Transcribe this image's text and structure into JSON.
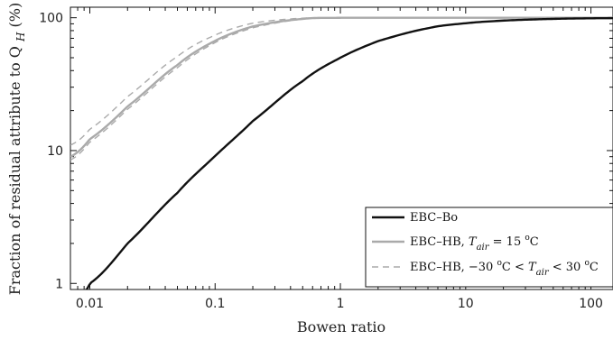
{
  "chart_data": {
    "type": "line",
    "xlabel": "Bowen ratio",
    "ylabel": "Fraction of residual attribute to Q",
    "ylabel_sub": "H",
    "ylabel_unit": " (%)",
    "x_scale": "log",
    "y_scale": "log",
    "xlim": [
      0.007,
      150
    ],
    "ylim": [
      0.9,
      120
    ],
    "x_ticks": [
      0.01,
      0.1,
      1,
      10,
      100
    ],
    "x_tick_labels": [
      "0.01",
      "0.1",
      "1",
      "10",
      "100"
    ],
    "y_ticks": [
      1,
      10,
      100
    ],
    "y_tick_labels": [
      "1",
      "10",
      "100"
    ],
    "grid": false,
    "legend_placement": "bottom-right",
    "series": [
      {
        "name": "EBC–Bo",
        "color": "#111111",
        "style": "solid",
        "x": [
          0.0085,
          0.01,
          0.02,
          0.05,
          0.1,
          0.2,
          0.5,
          1,
          2,
          5,
          10,
          20,
          50,
          100,
          150
        ],
        "y": [
          0.85,
          1.0,
          2.0,
          4.8,
          9.1,
          16.7,
          33.3,
          50,
          66.7,
          83.3,
          90.9,
          95.2,
          98.0,
          99.0,
          99.3
        ]
      },
      {
        "name": "EBC–HB,  T_air = 15 °C",
        "name_parts": [
          "EBC–HB,  ",
          "T",
          "air",
          " = 15 ",
          "o",
          "C"
        ],
        "color": "#aaaaaa",
        "style": "solid",
        "x": [
          0.007,
          0.01,
          0.02,
          0.05,
          0.1,
          0.2,
          0.5,
          1,
          2,
          5,
          10,
          100,
          150
        ],
        "y": [
          9,
          12.2,
          21.5,
          44,
          67,
          86,
          98,
          99.9,
          100,
          100,
          100,
          100,
          100
        ]
      },
      {
        "name": "EBC–HB, −30 °C < T_air < 30 °C (upper)",
        "color": "#aaaaaa",
        "style": "dashed",
        "x": [
          0.007,
          0.01,
          0.02,
          0.05,
          0.1,
          0.2,
          0.5,
          1,
          2,
          5,
          10,
          100,
          150
        ],
        "y": [
          11,
          14.5,
          25.5,
          51,
          74,
          91,
          99.2,
          100,
          100,
          100,
          100,
          100,
          100
        ]
      },
      {
        "name": "EBC–HB, −30 °C < T_air < 30 °C (lower)",
        "color": "#aaaaaa",
        "style": "dashed",
        "x": [
          0.007,
          0.01,
          0.02,
          0.05,
          0.1,
          0.2,
          0.5,
          1,
          2,
          5,
          10,
          100,
          150
        ],
        "y": [
          8.5,
          11.6,
          20.5,
          42,
          65,
          84,
          97.5,
          99.8,
          100,
          100,
          100,
          100,
          100
        ]
      }
    ],
    "legend": {
      "entries": [
        {
          "style": "solid",
          "color": "#111111",
          "parts": [
            "EBC–Bo"
          ]
        },
        {
          "style": "solid",
          "color": "#aaaaaa",
          "parts": [
            "EBC–HB,  ",
            "T",
            "air",
            " = 15 ",
            "o",
            "C"
          ]
        },
        {
          "style": "dashed",
          "color": "#aaaaaa",
          "parts": [
            "EBC–HB, −30 ",
            "o",
            "C < ",
            "T",
            "air",
            " < 30 ",
            "o",
            "C"
          ]
        }
      ]
    }
  }
}
